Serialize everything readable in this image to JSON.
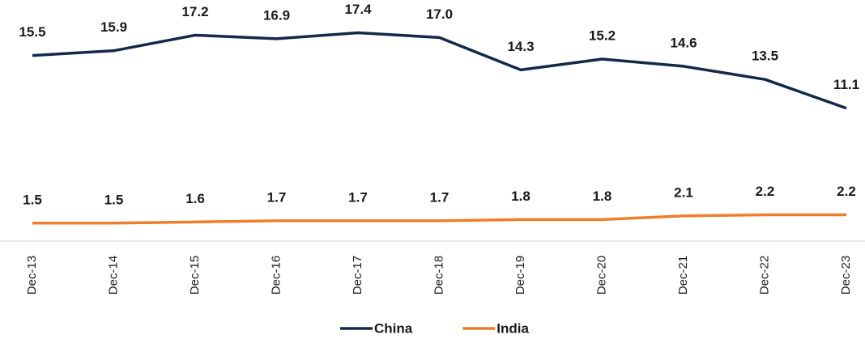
{
  "chart_data": {
    "type": "line",
    "categories": [
      "Dec-13",
      "Dec-14",
      "Dec-15",
      "Dec-16",
      "Dec-17",
      "Dec-18",
      "Dec-19",
      "Dec-20",
      "Dec-21",
      "Dec-22",
      "Dec-23"
    ],
    "series": [
      {
        "name": "China",
        "color": "#14294a",
        "values": [
          15.5,
          15.9,
          17.2,
          16.9,
          17.4,
          17.0,
          14.3,
          15.2,
          14.6,
          13.5,
          11.1
        ],
        "value_labels": [
          "15.5",
          "15.9",
          "17.2",
          "16.9",
          "17.4",
          "17.0",
          "14.3",
          "15.2",
          "14.6",
          "13.5",
          "11.1"
        ]
      },
      {
        "name": "India",
        "color": "#f07d2a",
        "values": [
          1.5,
          1.5,
          1.6,
          1.7,
          1.7,
          1.7,
          1.8,
          1.8,
          2.1,
          2.2,
          2.2
        ]
      }
    ],
    "ylim": [
      0,
      20
    ]
  }
}
